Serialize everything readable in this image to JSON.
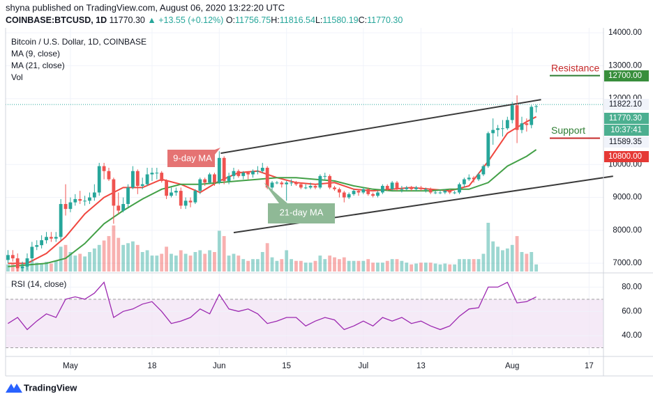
{
  "header": {
    "byline": "shyna published on TradingView.com, August 06, 2020 13:22:20 UTC",
    "symbol": "COINBASE:BTCUSD, 1D",
    "last": "11770.30",
    "arrow": "▲",
    "change": "+13.55 (+0.12%)",
    "ohlc": [
      {
        "label": "O:",
        "value": "11756.75"
      },
      {
        "label": "H:",
        "value": "11816.54"
      },
      {
        "label": "L:",
        "value": "11580.19"
      },
      {
        "label": "C:",
        "value": "11770.30"
      }
    ]
  },
  "footer": {
    "brand": "TradingView"
  },
  "chart_data": {
    "type": "candlestick",
    "title": "Bitcoin / U.S. Dollar, 1D, COINBASE",
    "volume_name": "Vol",
    "up_color": "#26a69a",
    "down_color": "#ef5350",
    "xlim": [
      -12.5,
      112
    ],
    "xticks": [
      {
        "value": 1,
        "label": "May"
      },
      {
        "value": 18,
        "label": "18"
      },
      {
        "value": 32,
        "label": "Jun"
      },
      {
        "value": 46,
        "label": "15"
      },
      {
        "value": 62,
        "label": "Jul"
      },
      {
        "value": 74,
        "label": "13"
      },
      {
        "value": 93,
        "label": "Aug"
      },
      {
        "value": 109,
        "label": "17"
      }
    ],
    "ylim": [
      6750,
      14150
    ],
    "yticks": [
      {
        "value": 14000,
        "label": "14000.00"
      },
      {
        "value": 13000,
        "label": "13000.00"
      },
      {
        "value": 12000,
        "label": "12000.00"
      },
      {
        "value": 10000,
        "label": "10000.00"
      },
      {
        "value": 9000,
        "label": "9000.00"
      },
      {
        "value": 8000,
        "label": "8000.00"
      },
      {
        "value": 7000,
        "label": "7000.00"
      }
    ],
    "grid": true,
    "x": [
      -12,
      -11,
      -10,
      -9,
      -8,
      -7,
      -6,
      -5,
      -4,
      -3,
      -2,
      -1,
      0,
      1,
      2,
      3,
      4,
      5,
      6,
      7,
      8,
      9,
      10,
      11,
      12,
      13,
      14,
      15,
      16,
      17,
      18,
      19,
      20,
      21,
      22,
      23,
      24,
      25,
      26,
      27,
      28,
      29,
      30,
      31,
      32,
      33,
      34,
      35,
      36,
      37,
      38,
      39,
      40,
      41,
      42,
      43,
      44,
      45,
      46,
      47,
      48,
      49,
      50,
      51,
      52,
      53,
      54,
      55,
      56,
      57,
      58,
      59,
      60,
      61,
      62,
      63,
      64,
      65,
      66,
      67,
      68,
      69,
      70,
      71,
      72,
      73,
      74,
      75,
      76,
      77,
      78,
      79,
      80,
      81,
      82,
      83,
      84,
      85,
      86,
      87,
      88,
      89,
      90,
      91,
      92,
      93,
      94,
      95,
      96,
      97,
      98
    ],
    "open": [
      7100,
      7250,
      7150,
      6850,
      6900,
      7150,
      7500,
      7550,
      7700,
      7800,
      7750,
      7800,
      8800,
      8650,
      8850,
      8950,
      8900,
      8900,
      9000,
      9150,
      9950,
      9800,
      9550,
      8750,
      8600,
      8800,
      9300,
      9800,
      9350,
      9400,
      9700,
      9750,
      9750,
      9500,
      9050,
      9150,
      9200,
      8750,
      8900,
      8850,
      9200,
      9550,
      9450,
      9700,
      9450,
      10200,
      9500,
      9650,
      9800,
      9650,
      9750,
      9700,
      9800,
      9800,
      9900,
      9300,
      9450,
      9450,
      9400,
      9450,
      9450,
      9400,
      9300,
      9300,
      9350,
      9300,
      9650,
      9650,
      9300,
      9250,
      9150,
      9000,
      9100,
      9200,
      9150,
      9250,
      9100,
      9050,
      9150,
      9350,
      9250,
      9450,
      9250,
      9250,
      9300,
      9250,
      9300,
      9250,
      9250,
      9150,
      9150,
      9150,
      9200,
      9150,
      9150,
      9400,
      9550,
      9600,
      9550,
      9700,
      9950,
      10950,
      11050,
      11100,
      11100,
      11350,
      11800,
      11050,
      11250,
      11200,
      11756.75
    ],
    "high": [
      7400,
      7400,
      7300,
      7050,
      7300,
      7650,
      7700,
      7850,
      7950,
      7950,
      7950,
      8950,
      9400,
      9000,
      9100,
      9200,
      9050,
      9150,
      9400,
      10050,
      10050,
      9900,
      9600,
      9150,
      9000,
      9400,
      9950,
      9850,
      9600,
      9900,
      9900,
      9900,
      9800,
      9550,
      9300,
      9300,
      9300,
      9000,
      9000,
      9250,
      9600,
      9600,
      9750,
      9750,
      10400,
      10250,
      9750,
      9900,
      9850,
      9800,
      9800,
      9850,
      9950,
      10050,
      9950,
      9500,
      9500,
      9500,
      9500,
      9550,
      9500,
      9450,
      9400,
      9450,
      9400,
      9700,
      9750,
      9700,
      9350,
      9300,
      9200,
      9150,
      9250,
      9250,
      9300,
      9300,
      9150,
      9200,
      9400,
      9400,
      9500,
      9500,
      9350,
      9350,
      9350,
      9350,
      9350,
      9300,
      9300,
      9200,
      9200,
      9250,
      9250,
      9200,
      9450,
      9600,
      9700,
      9650,
      9750,
      10000,
      11000,
      11400,
      11200,
      11350,
      11450,
      11900,
      12100,
      11450,
      11400,
      11800,
      11816.54
    ],
    "low": [
      7000,
      7050,
      6750,
      6750,
      6800,
      7050,
      7400,
      7450,
      7600,
      7650,
      7650,
      7700,
      8450,
      8550,
      8750,
      8800,
      8750,
      8800,
      8900,
      9050,
      9550,
      9500,
      8200,
      8500,
      8550,
      8700,
      9250,
      9100,
      9250,
      9350,
      9500,
      9550,
      9450,
      8950,
      9000,
      9050,
      8650,
      8650,
      8700,
      8800,
      9100,
      9350,
      9400,
      9350,
      9400,
      9400,
      9400,
      9550,
      9600,
      9550,
      9550,
      9600,
      9700,
      9750,
      9250,
      9200,
      9400,
      9300,
      8900,
      9350,
      9350,
      9250,
      9250,
      9250,
      9250,
      9250,
      9550,
      9250,
      9200,
      9000,
      8850,
      8950,
      9050,
      9050,
      9100,
      9050,
      9000,
      9000,
      9100,
      9200,
      9200,
      9200,
      9150,
      9200,
      9200,
      9200,
      9200,
      9150,
      9100,
      9100,
      9100,
      9100,
      9100,
      9100,
      9100,
      9300,
      9500,
      9450,
      9500,
      9650,
      9900,
      10600,
      10850,
      10850,
      11050,
      11250,
      10650,
      10950,
      11000,
      11100,
      11580.19
    ],
    "close": [
      7250,
      7150,
      6850,
      6900,
      7150,
      7500,
      7550,
      7700,
      7800,
      7750,
      7800,
      8800,
      8650,
      8850,
      8950,
      8900,
      8900,
      9000,
      9150,
      9950,
      9800,
      9550,
      8750,
      8600,
      8800,
      9300,
      9800,
      9350,
      9400,
      9700,
      9750,
      9750,
      9500,
      9050,
      9150,
      9200,
      8750,
      8900,
      8850,
      9200,
      9550,
      9450,
      9700,
      9450,
      10200,
      9500,
      9650,
      9800,
      9650,
      9750,
      9700,
      9800,
      9800,
      9900,
      9300,
      9450,
      9450,
      9400,
      9450,
      9450,
      9400,
      9300,
      9300,
      9350,
      9300,
      9650,
      9650,
      9300,
      9250,
      9150,
      9000,
      9100,
      9200,
      9150,
      9250,
      9100,
      9050,
      9150,
      9350,
      9250,
      9450,
      9250,
      9250,
      9300,
      9250,
      9300,
      9250,
      9250,
      9150,
      9150,
      9150,
      9200,
      9150,
      9150,
      9400,
      9550,
      9600,
      9550,
      9700,
      9950,
      10950,
      11050,
      11100,
      11100,
      11350,
      11800,
      11050,
      11250,
      11200,
      11750,
      11770.3
    ],
    "volume": [
      8,
      9,
      10,
      9,
      8,
      12,
      10,
      9,
      11,
      9,
      12,
      28,
      30,
      22,
      18,
      20,
      17,
      22,
      26,
      30,
      35,
      40,
      52,
      38,
      30,
      32,
      34,
      30,
      22,
      24,
      18,
      18,
      20,
      28,
      20,
      18,
      24,
      20,
      18,
      22,
      24,
      20,
      24,
      22,
      46,
      40,
      18,
      20,
      18,
      14,
      12,
      14,
      14,
      22,
      32,
      16,
      12,
      14,
      24,
      14,
      12,
      12,
      10,
      10,
      12,
      18,
      14,
      18,
      16,
      14,
      16,
      12,
      12,
      12,
      12,
      14,
      10,
      10,
      10,
      12,
      14,
      14,
      12,
      10,
      8,
      9,
      10,
      10,
      10,
      9,
      8,
      9,
      8,
      8,
      14,
      14,
      14,
      14,
      14,
      20,
      55,
      34,
      28,
      24,
      26,
      30,
      40,
      22,
      20,
      22,
      8
    ],
    "series": [
      {
        "name": "MA (9, close)",
        "color": "#f0473f",
        "x": [
          -12,
          -8,
          -4,
          0,
          4,
          8,
          12,
          16,
          20,
          24,
          28,
          32,
          36,
          40,
          44,
          48,
          52,
          56,
          60,
          64,
          68,
          72,
          76,
          80,
          84,
          88,
          92,
          96,
          98
        ],
        "values": [
          7000,
          7000,
          7300,
          7800,
          8500,
          9000,
          9300,
          9300,
          9550,
          9400,
          9150,
          9500,
          9750,
          9800,
          9600,
          9450,
          9400,
          9450,
          9250,
          9200,
          9250,
          9300,
          9250,
          9200,
          9350,
          10100,
          10950,
          11300,
          11450
        ]
      },
      {
        "name": "MA (21, close)",
        "color": "#43a047",
        "x": [
          -12,
          -4,
          0,
          4,
          8,
          12,
          16,
          20,
          24,
          28,
          32,
          36,
          40,
          44,
          48,
          52,
          56,
          60,
          64,
          68,
          72,
          76,
          80,
          84,
          88,
          92,
          96,
          98
        ],
        "values": [
          6900,
          7000,
          7150,
          7600,
          8200,
          8600,
          8950,
          9250,
          9400,
          9400,
          9450,
          9500,
          9550,
          9600,
          9600,
          9550,
          9500,
          9350,
          9250,
          9200,
          9200,
          9200,
          9250,
          9250,
          9450,
          9950,
          10250,
          10450
        ]
      }
    ],
    "trendlines": [
      {
        "x": [
          32.3,
          99
        ],
        "values": [
          10342,
          11970
        ]
      },
      {
        "x": [
          35,
          114
        ],
        "values": [
          7932,
          9645
        ]
      }
    ],
    "levels": [
      {
        "label": "Resistance",
        "value": 12700,
        "color": "#2e7d32",
        "text_color": "#c62828"
      },
      {
        "label": "Support",
        "value": 10800,
        "color": "#c62828",
        "text_color": "#2e7d32"
      }
    ],
    "price_line": 11822.1,
    "price_labels": [
      {
        "label": "12700.00",
        "color": "#388e3c"
      },
      {
        "label": "11822.10",
        "color": "#f0f3fa"
      },
      {
        "label": "11770.30",
        "color": "#4caf90"
      },
      {
        "label": "10:37:41",
        "color": "#4caf90"
      },
      {
        "label": "11589.35",
        "color": "#f0f3fa"
      },
      {
        "label": "10800.00",
        "color": "#e53935"
      }
    ],
    "annotations": [
      {
        "text": "9-day MA",
        "color": "#e57373"
      },
      {
        "text": "21-day MA",
        "color": "#8fb996"
      }
    ],
    "rsi": {
      "name": "RSI (14, close)",
      "color": "#9c27b0",
      "ylim": [
        24,
        90
      ],
      "band": [
        30,
        70
      ],
      "yticks": [
        {
          "value": 80,
          "label": "80.00"
        },
        {
          "value": 60,
          "label": "60.00"
        },
        {
          "value": 40,
          "label": "40.00"
        }
      ],
      "x": [
        -12,
        -10,
        -8,
        -6,
        -4,
        -2,
        0,
        2,
        4,
        6,
        8,
        10,
        12,
        14,
        16,
        18,
        20,
        22,
        24,
        26,
        28,
        30,
        32,
        34,
        36,
        38,
        40,
        42,
        44,
        46,
        48,
        50,
        52,
        54,
        56,
        58,
        60,
        62,
        64,
        66,
        68,
        70,
        72,
        74,
        76,
        78,
        80,
        82,
        84,
        86,
        88,
        90,
        92,
        94,
        96,
        98
      ],
      "values": [
        50,
        55,
        45,
        52,
        58,
        55,
        70,
        72,
        70,
        75,
        84,
        55,
        60,
        62,
        66,
        68,
        60,
        50,
        52,
        55,
        62,
        58,
        74,
        62,
        60,
        62,
        58,
        50,
        52,
        55,
        55,
        48,
        52,
        55,
        53,
        45,
        48,
        52,
        48,
        55,
        52,
        55,
        50,
        52,
        48,
        45,
        48,
        56,
        62,
        63,
        80,
        80,
        84,
        67,
        68,
        72
      ]
    }
  }
}
